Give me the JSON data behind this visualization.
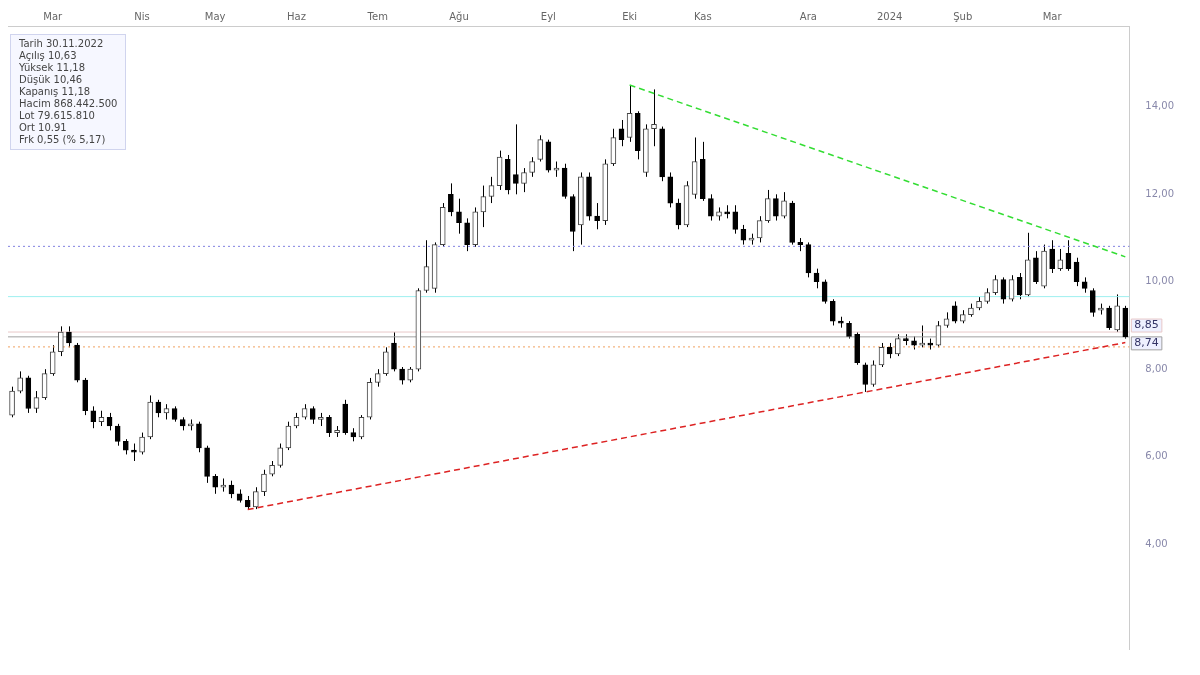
{
  "chart_data": {
    "type": "candlestick",
    "categories": [
      null,
      null,
      null,
      null,
      null,
      "Mar",
      null,
      null,
      null,
      null,
      null,
      null,
      null,
      null,
      null,
      null,
      "Nis",
      null,
      null,
      null,
      null,
      null,
      null,
      null,
      null,
      "May",
      null,
      null,
      null,
      null,
      null,
      null,
      null,
      null,
      null,
      "Haz",
      null,
      null,
      null,
      null,
      null,
      null,
      null,
      null,
      null,
      "Tem",
      null,
      null,
      null,
      null,
      null,
      null,
      null,
      null,
      null,
      "Ağu",
      null,
      null,
      null,
      null,
      null,
      null,
      null,
      null,
      null,
      null,
      "Eyl",
      null,
      null,
      null,
      null,
      null,
      null,
      null,
      null,
      null,
      "Eki",
      null,
      null,
      null,
      null,
      null,
      null,
      null,
      null,
      "Kas",
      null,
      null,
      null,
      null,
      null,
      null,
      null,
      null,
      null,
      null,
      null,
      null,
      "Ara",
      null,
      null,
      null,
      null,
      null,
      null,
      null,
      null,
      null,
      "2024",
      null,
      null,
      null,
      null,
      null,
      null,
      null,
      null,
      "Şub",
      null,
      null,
      null,
      null,
      null,
      null,
      null,
      null,
      null,
      null,
      "Mar",
      null,
      null,
      null,
      null,
      null,
      null,
      null,
      null,
      null
    ],
    "ohlc": [
      [
        6.95,
        7.6,
        6.9,
        7.5
      ],
      [
        7.5,
        7.95,
        7.45,
        7.8
      ],
      [
        7.8,
        7.85,
        7.0,
        7.1
      ],
      [
        7.1,
        7.5,
        7.0,
        7.35
      ],
      [
        7.35,
        8.0,
        7.3,
        7.9
      ],
      [
        7.9,
        8.55,
        7.85,
        8.4
      ],
      [
        8.4,
        8.98,
        8.3,
        8.85
      ],
      [
        8.85,
        8.98,
        8.5,
        8.6
      ],
      [
        8.55,
        8.6,
        7.7,
        7.75
      ],
      [
        7.75,
        7.8,
        6.95,
        7.05
      ],
      [
        7.05,
        7.15,
        6.65,
        6.8
      ],
      [
        6.8,
        7.05,
        6.7,
        6.9
      ],
      [
        6.9,
        7.0,
        6.6,
        6.7
      ],
      [
        6.7,
        6.75,
        6.25,
        6.35
      ],
      [
        6.35,
        6.4,
        6.05,
        6.15
      ],
      [
        6.15,
        6.3,
        5.9,
        6.1
      ],
      [
        6.1,
        6.55,
        6.05,
        6.45
      ],
      [
        6.45,
        7.4,
        6.4,
        7.25
      ],
      [
        7.25,
        7.3,
        6.9,
        7.0
      ],
      [
        7.0,
        7.2,
        6.85,
        7.1
      ],
      [
        7.1,
        7.15,
        6.8,
        6.85
      ],
      [
        6.85,
        6.9,
        6.6,
        6.7
      ],
      [
        6.7,
        6.85,
        6.6,
        6.75
      ],
      [
        6.75,
        6.8,
        6.1,
        6.2
      ],
      [
        6.2,
        6.25,
        5.4,
        5.55
      ],
      [
        5.55,
        5.6,
        5.15,
        5.3
      ],
      [
        5.3,
        5.5,
        5.2,
        5.35
      ],
      [
        5.35,
        5.45,
        5.05,
        5.15
      ],
      [
        5.15,
        5.25,
        4.95,
        5.0
      ],
      [
        5.0,
        5.1,
        4.78,
        4.85
      ],
      [
        4.85,
        5.3,
        4.8,
        5.2
      ],
      [
        5.2,
        5.7,
        5.1,
        5.6
      ],
      [
        5.6,
        5.9,
        5.55,
        5.8
      ],
      [
        5.8,
        6.3,
        5.75,
        6.2
      ],
      [
        6.2,
        6.8,
        6.15,
        6.7
      ],
      [
        6.7,
        7.0,
        6.65,
        6.9
      ],
      [
        6.9,
        7.2,
        6.85,
        7.1
      ],
      [
        7.1,
        7.15,
        6.75,
        6.85
      ],
      [
        6.85,
        7.0,
        6.7,
        6.9
      ],
      [
        6.9,
        6.95,
        6.45,
        6.55
      ],
      [
        6.55,
        6.7,
        6.45,
        6.6
      ],
      [
        7.2,
        7.3,
        6.5,
        6.55
      ],
      [
        6.55,
        6.65,
        6.35,
        6.45
      ],
      [
        6.45,
        6.95,
        6.4,
        6.9
      ],
      [
        6.9,
        7.8,
        6.85,
        7.7
      ],
      [
        7.7,
        8.0,
        7.6,
        7.9
      ],
      [
        7.9,
        8.5,
        7.85,
        8.4
      ],
      [
        8.6,
        8.85,
        7.95,
        8.0
      ],
      [
        8.0,
        8.05,
        7.65,
        7.75
      ],
      [
        7.75,
        8.05,
        7.7,
        8.0
      ],
      [
        8.0,
        9.85,
        7.95,
        9.8
      ],
      [
        9.8,
        10.95,
        9.75,
        10.35
      ],
      [
        9.85,
        10.9,
        9.75,
        10.85
      ],
      [
        10.85,
        11.8,
        10.8,
        11.7
      ],
      [
        12.0,
        12.25,
        11.5,
        11.6
      ],
      [
        11.6,
        11.9,
        11.1,
        11.35
      ],
      [
        11.35,
        11.45,
        10.7,
        10.85
      ],
      [
        10.85,
        11.7,
        10.8,
        11.6
      ],
      [
        11.6,
        12.2,
        11.25,
        11.95
      ],
      [
        11.95,
        12.4,
        11.8,
        12.2
      ],
      [
        12.2,
        13.0,
        12.1,
        12.85
      ],
      [
        12.8,
        12.9,
        12.0,
        12.1
      ],
      [
        12.45,
        13.6,
        12.0,
        12.25
      ],
      [
        12.25,
        12.6,
        12.05,
        12.5
      ],
      [
        12.5,
        12.85,
        12.4,
        12.75
      ],
      [
        12.8,
        13.35,
        12.75,
        13.25
      ],
      [
        13.2,
        13.25,
        12.5,
        12.55
      ],
      [
        12.55,
        12.75,
        12.4,
        12.6
      ],
      [
        12.6,
        12.7,
        11.9,
        11.95
      ],
      [
        11.95,
        12.0,
        10.7,
        11.15
      ],
      [
        11.3,
        12.5,
        10.85,
        12.4
      ],
      [
        12.4,
        12.5,
        11.4,
        11.5
      ],
      [
        11.5,
        11.8,
        11.2,
        11.4
      ],
      [
        11.4,
        12.8,
        11.3,
        12.7
      ],
      [
        12.7,
        13.5,
        12.65,
        13.3
      ],
      [
        13.5,
        13.7,
        13.1,
        13.25
      ],
      [
        13.3,
        14.5,
        13.2,
        13.85
      ],
      [
        13.85,
        13.9,
        12.8,
        13.0
      ],
      [
        12.5,
        13.6,
        12.4,
        13.5
      ],
      [
        13.5,
        14.4,
        13.1,
        13.6
      ],
      [
        13.5,
        13.55,
        12.3,
        12.4
      ],
      [
        12.4,
        12.5,
        11.7,
        11.8
      ],
      [
        11.8,
        11.9,
        11.2,
        11.3
      ],
      [
        11.3,
        12.3,
        11.25,
        12.2
      ],
      [
        12.0,
        13.3,
        11.9,
        12.75
      ],
      [
        12.8,
        13.2,
        11.85,
        11.9
      ],
      [
        11.9,
        12.0,
        11.4,
        11.5
      ],
      [
        11.5,
        11.7,
        11.4,
        11.6
      ],
      [
        11.6,
        11.75,
        11.45,
        11.55
      ],
      [
        11.6,
        11.75,
        11.1,
        11.2
      ],
      [
        11.2,
        11.3,
        10.85,
        10.95
      ],
      [
        10.95,
        11.1,
        10.85,
        11.0
      ],
      [
        11.0,
        11.5,
        10.9,
        11.4
      ],
      [
        11.4,
        12.1,
        11.35,
        11.9
      ],
      [
        11.9,
        12.0,
        11.4,
        11.5
      ],
      [
        11.5,
        12.05,
        11.45,
        11.85
      ],
      [
        11.8,
        11.85,
        10.85,
        10.9
      ],
      [
        10.9,
        11.0,
        10.7,
        10.85
      ],
      [
        10.85,
        10.9,
        10.1,
        10.2
      ],
      [
        10.2,
        10.3,
        9.85,
        10.0
      ],
      [
        10.0,
        10.05,
        9.5,
        9.55
      ],
      [
        9.55,
        9.6,
        9.0,
        9.1
      ],
      [
        9.1,
        9.2,
        8.95,
        9.05
      ],
      [
        9.05,
        9.1,
        8.7,
        8.75
      ],
      [
        8.8,
        8.85,
        8.1,
        8.15
      ],
      [
        8.1,
        8.15,
        7.48,
        7.65
      ],
      [
        7.65,
        8.2,
        7.6,
        8.1
      ],
      [
        8.1,
        8.6,
        8.05,
        8.5
      ],
      [
        8.5,
        8.6,
        8.25,
        8.35
      ],
      [
        8.35,
        8.8,
        8.3,
        8.7
      ],
      [
        8.7,
        8.8,
        8.55,
        8.65
      ],
      [
        8.65,
        8.75,
        8.45,
        8.55
      ],
      [
        8.55,
        9.0,
        8.5,
        8.6
      ],
      [
        8.6,
        8.7,
        8.45,
        8.55
      ],
      [
        8.55,
        9.1,
        8.5,
        9.0
      ],
      [
        9.0,
        9.3,
        8.95,
        9.15
      ],
      [
        9.45,
        9.55,
        9.05,
        9.1
      ],
      [
        9.1,
        9.35,
        9.05,
        9.25
      ],
      [
        9.25,
        9.5,
        9.2,
        9.4
      ],
      [
        9.4,
        9.65,
        9.35,
        9.55
      ],
      [
        9.55,
        9.85,
        9.5,
        9.75
      ],
      [
        9.75,
        10.15,
        9.7,
        10.05
      ],
      [
        10.05,
        10.1,
        9.5,
        9.6
      ],
      [
        9.6,
        10.15,
        9.55,
        10.05
      ],
      [
        10.1,
        10.2,
        9.6,
        9.7
      ],
      [
        9.7,
        11.12,
        9.65,
        10.5
      ],
      [
        10.55,
        10.7,
        9.95,
        10.0
      ],
      [
        9.9,
        10.85,
        9.85,
        10.7
      ],
      [
        10.75,
        10.95,
        10.2,
        10.3
      ],
      [
        10.3,
        10.75,
        10.25,
        10.5
      ],
      [
        10.65,
        10.95,
        10.25,
        10.3
      ],
      [
        10.45,
        10.55,
        9.9,
        10.0
      ],
      [
        10.0,
        10.1,
        9.75,
        9.85
      ],
      [
        9.8,
        9.85,
        9.2,
        9.3
      ],
      [
        9.35,
        9.5,
        9.25,
        9.4
      ],
      [
        9.4,
        9.45,
        8.9,
        8.95
      ],
      [
        8.9,
        9.71,
        8.85,
        9.45
      ],
      [
        9.4,
        9.45,
        8.7,
        8.74
      ]
    ],
    "series": [
      {
        "type": "line",
        "color": "#33dd33",
        "line_style": "dashed",
        "values": [
          null,
          null,
          null,
          null,
          null,
          null,
          null,
          null,
          null,
          null,
          null,
          null,
          null,
          null,
          null,
          null,
          null,
          null,
          null,
          null,
          null,
          null,
          null,
          null,
          null,
          null,
          null,
          null,
          null,
          null,
          null,
          null,
          null,
          null,
          null,
          null,
          null,
          null,
          null,
          null,
          null,
          null,
          null,
          null,
          null,
          null,
          null,
          null,
          null,
          null,
          null,
          null,
          null,
          null,
          null,
          null,
          null,
          null,
          null,
          null,
          null,
          null,
          null,
          null,
          null,
          null,
          null,
          null,
          null,
          null,
          null,
          null,
          null,
          null,
          null,
          null,
          14.5,
          null,
          null,
          null,
          null,
          null,
          null,
          null,
          null,
          null,
          null,
          null,
          null,
          null,
          null,
          null,
          null,
          null,
          null,
          null,
          null,
          null,
          null,
          null,
          null,
          null,
          null,
          null,
          null,
          null,
          null,
          null,
          null,
          null,
          null,
          null,
          null,
          null,
          null,
          null,
          null,
          null,
          null,
          null,
          null,
          null,
          null,
          null,
          null,
          null,
          null,
          null,
          null,
          null,
          null,
          null,
          null,
          null,
          null,
          null,
          null,
          10.57
        ]
      },
      {
        "type": "line",
        "color": "#dd2222",
        "line_style": "dashed",
        "values": [
          null,
          null,
          null,
          null,
          null,
          null,
          null,
          null,
          null,
          null,
          null,
          null,
          null,
          null,
          null,
          null,
          null,
          null,
          null,
          null,
          null,
          null,
          null,
          null,
          null,
          null,
          null,
          null,
          null,
          4.79,
          null,
          null,
          null,
          null,
          null,
          null,
          null,
          null,
          null,
          null,
          null,
          null,
          null,
          null,
          null,
          null,
          null,
          null,
          null,
          null,
          null,
          null,
          null,
          null,
          null,
          null,
          null,
          null,
          null,
          null,
          null,
          null,
          null,
          null,
          null,
          null,
          null,
          null,
          null,
          null,
          null,
          null,
          null,
          null,
          null,
          null,
          null,
          null,
          null,
          null,
          null,
          null,
          null,
          null,
          null,
          null,
          null,
          null,
          null,
          null,
          null,
          null,
          null,
          null,
          null,
          null,
          null,
          null,
          null,
          null,
          null,
          null,
          null,
          null,
          null,
          null,
          null,
          null,
          null,
          null,
          null,
          null,
          null,
          null,
          null,
          null,
          null,
          null,
          null,
          null,
          null,
          null,
          null,
          null,
          null,
          null,
          null,
          null,
          null,
          null,
          null,
          null,
          null,
          null,
          null,
          null,
          null,
          8.61
        ]
      }
    ],
    "ylim": [
      1.6,
      15.85
    ],
    "yticks": [
      {
        "value": 4,
        "label": "4,00"
      },
      {
        "value": 6,
        "label": "6,00"
      },
      {
        "value": 8,
        "label": "8,00"
      },
      {
        "value": 10,
        "label": "10,00"
      },
      {
        "value": 12,
        "label": "12,00"
      },
      {
        "value": 14,
        "label": "14,00"
      }
    ],
    "ref_lines": [
      {
        "axis": "y",
        "value": 10.81,
        "color": "#8080e0",
        "line_style": "dotted"
      },
      {
        "axis": "y",
        "value": 9.66,
        "color": "#9ef0f0",
        "line_style": "solid"
      },
      {
        "axis": "y",
        "value": 8.85,
        "color": "#e8c8c8",
        "line_style": "solid",
        "label": "8,85"
      },
      {
        "axis": "y",
        "value": 8.74,
        "color": "#a0a0a0",
        "line_style": "solid",
        "label": "8,74"
      },
      {
        "axis": "y",
        "value": 8.51,
        "color": "#f0a060",
        "line_style": "dotted"
      }
    ],
    "annotations": [
      "Tarih 30.11.2022",
      "Açılış 10,63",
      "Yüksek 11,18",
      "Düşük 10,46",
      "Kapanış 11,18",
      "Hacim 868.442.500",
      "Lot 79.615.810",
      "Ort 10.91",
      "Frk 0,55 (% 5,17)"
    ],
    "legend": false
  }
}
